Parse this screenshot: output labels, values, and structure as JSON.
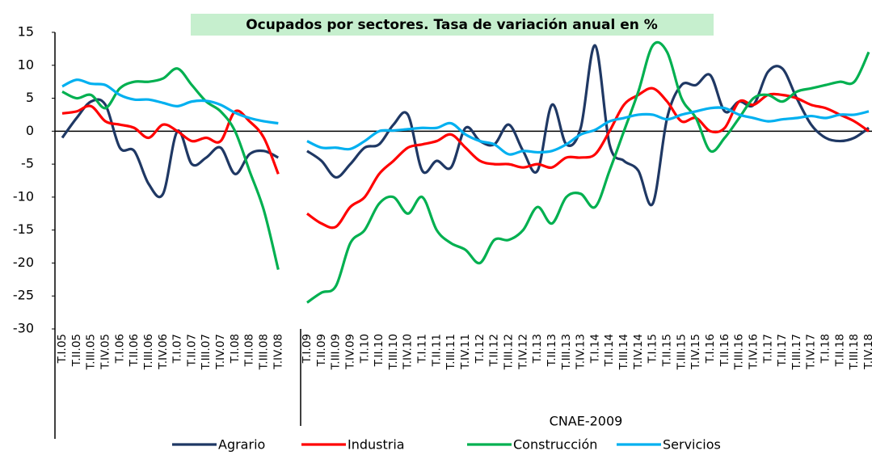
{
  "chart_data": {
    "type": "line",
    "title": "Ocupados por sectores. Tasa de variación anual en %",
    "annotation": "CNAE-2009",
    "categories": [
      "T.I.05",
      "T.II.05",
      "T.III.05",
      "T.IV.05",
      "T.I.06",
      "T.II.06",
      "T.III.06",
      "T.IV.06",
      "T.I.07",
      "T.II.07",
      "T.III.07",
      "T.IV.07",
      "T.I.08",
      "T.II.08",
      "T.III.08",
      "T.IV.08",
      null,
      "T.I.09",
      "T.II.09",
      "T.III.09",
      "T.IV.09",
      "T.I.10",
      "T.II.10",
      "T.III.10",
      "T.IV.10",
      "T.I.11",
      "T.II.11",
      "T.III.11",
      "T.IV.11",
      "T.I.12",
      "T.II.12",
      "T.III.12",
      "T.IV.12",
      "T.I.13",
      "T.II.13",
      "T.III.13",
      "T.IV.13",
      "T.I.14",
      "T.II.14",
      "T.III.14",
      "T.IV.14",
      "T.I.15",
      "T.II.15",
      "T.III.15",
      "T.IV.15",
      "T.I.16",
      "T.II.16",
      "T.III.16",
      "T.IV.16",
      "T.I.17",
      "T.II.17",
      "T.III.17",
      "T.IV.17",
      "T.I.18",
      "T.II.18",
      "T.III.18",
      "T.IV.18"
    ],
    "series": [
      {
        "name": "Agrario",
        "color": "#1f3864",
        "values": [
          -1,
          2,
          4.5,
          4,
          -2.5,
          -3,
          -8,
          -9.5,
          0,
          -5,
          -4,
          -2.5,
          -6.5,
          -3.5,
          -3,
          -4,
          null,
          -3,
          -4.5,
          -7,
          -5,
          -2.5,
          -2,
          1,
          2.5,
          -6,
          -4.5,
          -5.5,
          0.5,
          -1.5,
          -2,
          1,
          -3,
          -6,
          4,
          -2,
          0.5,
          13,
          -2,
          -4.5,
          -6,
          -11,
          2,
          7,
          7,
          8.5,
          3,
          4.5,
          4,
          9,
          9.5,
          5,
          1,
          -1,
          -1.5,
          -1,
          0.5
        ]
      },
      {
        "name": "Industria",
        "color": "#ff0000",
        "values": [
          2.7,
          3,
          3.8,
          1.5,
          1,
          0.5,
          -1,
          1,
          0,
          -1.5,
          -1,
          -1.5,
          3,
          1.5,
          -1,
          -6.5,
          null,
          -12.5,
          -14,
          -14.5,
          -11.5,
          -10,
          -6.5,
          -4.5,
          -2.5,
          -2,
          -1.5,
          -0.5,
          -2.5,
          -4.5,
          -5,
          -5,
          -5.5,
          -5,
          -5.5,
          -4,
          -4,
          -3.5,
          0,
          4,
          5.5,
          6.5,
          4.5,
          1.5,
          2,
          0,
          0.5,
          4.5,
          4,
          5.5,
          5.5,
          5,
          4,
          3.5,
          2.5,
          1.5,
          0
        ]
      },
      {
        "name": "Construcción",
        "color": "#00b050",
        "values": [
          6,
          5,
          5.5,
          3.5,
          6.5,
          7.5,
          7.5,
          8,
          9.5,
          7,
          4.5,
          3,
          0,
          -6,
          -12,
          -21,
          null,
          -26,
          -24.5,
          -23.5,
          -17,
          -15,
          -11,
          -10,
          -12.5,
          -10,
          -15,
          -17,
          -18,
          -20,
          -16.5,
          -16.5,
          -15,
          -11.5,
          -14,
          -10,
          -9.5,
          -11.5,
          -6,
          0,
          6,
          13,
          12,
          5,
          2,
          -3,
          -1,
          2,
          5,
          5.5,
          4.5,
          6,
          6.5,
          7,
          7.5,
          7.5,
          12
        ]
      },
      {
        "name": "Servicios",
        "color": "#00b0f0",
        "values": [
          6.8,
          7.8,
          7.2,
          7,
          5.5,
          4.8,
          4.8,
          4.3,
          3.8,
          4.5,
          4.6,
          4,
          2.8,
          2,
          1.5,
          1.2,
          null,
          -1.5,
          -2.5,
          -2.5,
          -2.7,
          -1.5,
          0,
          0.1,
          0.3,
          0.5,
          0.5,
          1.2,
          -0.5,
          -1.5,
          -2,
          -3.5,
          -3,
          -3.2,
          -3,
          -2,
          -0.5,
          0.2,
          1.5,
          2,
          2.5,
          2.5,
          1.8,
          2.5,
          3,
          3.5,
          3.5,
          2.5,
          2,
          1.5,
          1.8,
          2,
          2.3,
          2,
          2.5,
          2.5,
          3
        ]
      }
    ],
    "ylim": [
      -30,
      15
    ],
    "yticks": [
      -30,
      -25,
      -20,
      -15,
      -10,
      -5,
      0,
      5,
      10,
      15
    ],
    "negative_tick_color": "#ff0000",
    "grid": false,
    "legend": "bottom"
  }
}
